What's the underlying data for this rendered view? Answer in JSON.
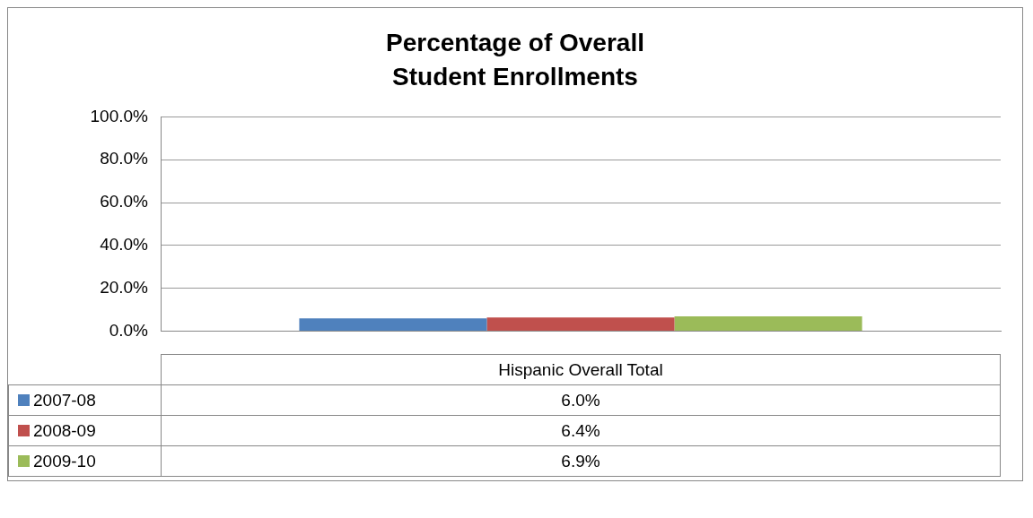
{
  "chart_data": {
    "type": "bar",
    "title": "Percentage of Overall Student Enrollments",
    "categories": [
      "Hispanic Overall Total"
    ],
    "series": [
      {
        "name": "2007-08",
        "color": "#4f81bd",
        "values": [
          6.0
        ]
      },
      {
        "name": "2008-09",
        "color": "#c0504d",
        "values": [
          6.4
        ]
      },
      {
        "name": "2009-10",
        "color": "#9bbb59",
        "values": [
          6.9
        ]
      }
    ],
    "annotations": [
      "6.0%",
      "6.4%",
      "6.9%"
    ],
    "ylim": [
      0,
      100
    ],
    "yticks": [
      {
        "value": 0,
        "label": "0.0%"
      },
      {
        "value": 20,
        "label": "20.0%"
      },
      {
        "value": 40,
        "label": "40.0%"
      },
      {
        "value": 60,
        "label": "60.0%"
      },
      {
        "value": 80,
        "label": "80.0%"
      },
      {
        "value": 100,
        "label": "100.0%"
      }
    ],
    "grid": "y",
    "legend": "bottom"
  }
}
